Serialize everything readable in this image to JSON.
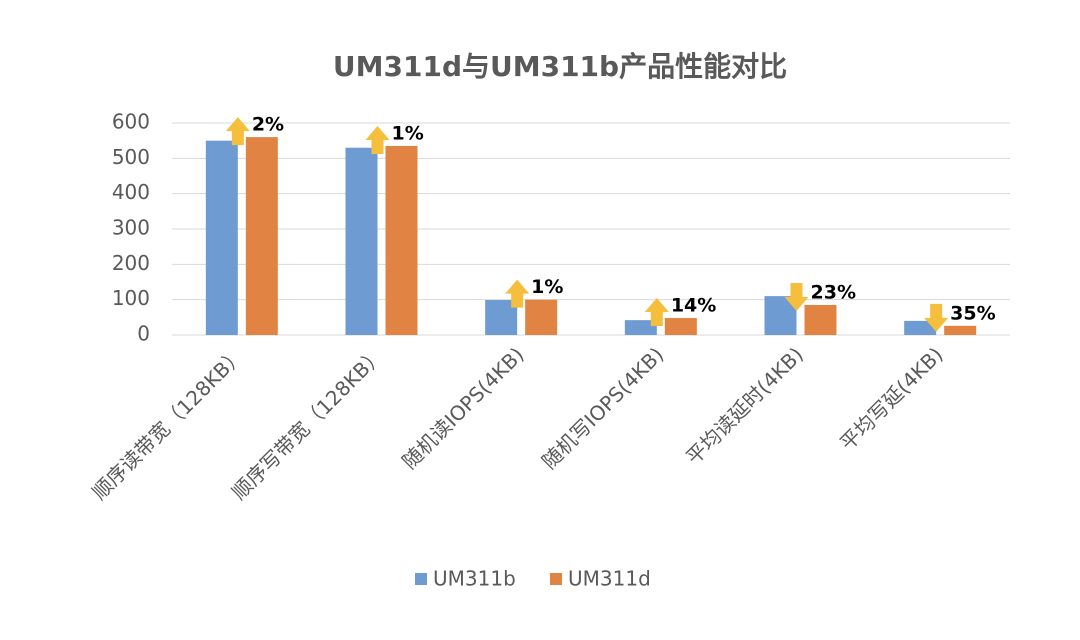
{
  "chart_data": {
    "type": "bar",
    "title": "UM311d与UM311b产品性能对比",
    "categories": [
      "顺序读带宽（128KB）",
      "顺序写带宽（128KB）",
      "随机读IOPS(4KB)",
      "随机写IOPS(4KB)",
      "平均读延时(4KB)",
      "平均写延(4KB)"
    ],
    "series": [
      {
        "name": "UM311b",
        "color": "#6e9bd1",
        "values": [
          550,
          530,
          99,
          42,
          110,
          40
        ]
      },
      {
        "name": "UM311d",
        "color": "#e08343",
        "values": [
          560,
          535,
          100,
          48,
          85,
          26
        ]
      }
    ],
    "annotations": [
      {
        "label": "2%",
        "direction": "up"
      },
      {
        "label": "1%",
        "direction": "up"
      },
      {
        "label": "1%",
        "direction": "up"
      },
      {
        "label": "14%",
        "direction": "up"
      },
      {
        "label": "23%",
        "direction": "down"
      },
      {
        "label": "35%",
        "direction": "down"
      }
    ],
    "ylim": [
      0,
      600
    ],
    "yticks": [
      0,
      100,
      200,
      300,
      400,
      500,
      600
    ],
    "grid": true,
    "legend": "bottom"
  }
}
